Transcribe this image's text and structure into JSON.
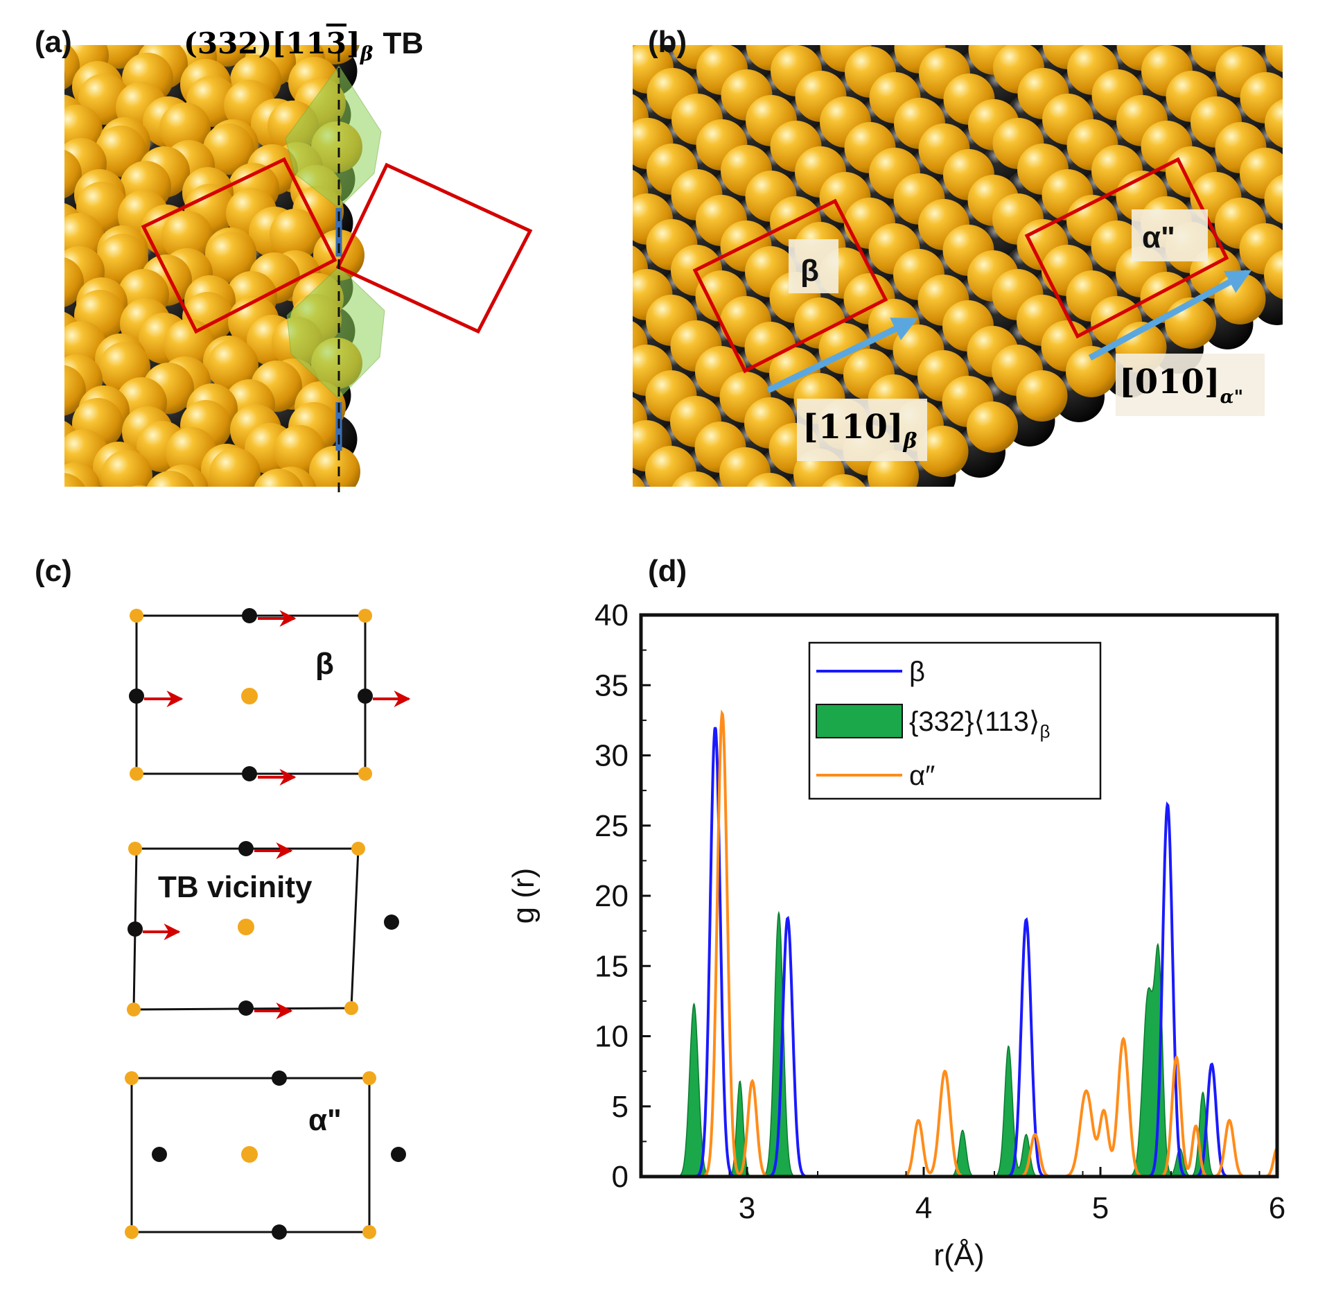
{
  "panels": {
    "a": {
      "label": "(a)",
      "title_prefix": "(332)[11",
      "title_bar3": "3",
      "title_close": "]",
      "title_sub": "β",
      "title_suffix": "TB"
    },
    "b": {
      "label": "(b)",
      "beta_label": "β",
      "alpha_label": "α\"",
      "dir_beta": "[110]",
      "dir_beta_sub": "β",
      "dir_alpha": "[010]",
      "dir_alpha_sub": "α\""
    },
    "c": {
      "label": "(c)",
      "cell_beta_label": "β",
      "cell_tb_label": "TB vicinity",
      "cell_alpha_label": "α\""
    },
    "d": {
      "label": "(d)"
    }
  },
  "colors": {
    "gold": "#e8a317",
    "black_atom": "#111111",
    "red": "#d40000",
    "blue_arrow": "#5aa7e0",
    "green_fill": "#1aa84a",
    "beta_line": "#1a1aff",
    "alpha_line": "#ff8c1a"
  },
  "chart_data": {
    "type": "line",
    "xlabel": "r(Å)",
    "ylabel": "g (r)",
    "xlim": [
      2.4,
      6.0
    ],
    "ylim": [
      0,
      40
    ],
    "xticks": [
      "3",
      "4",
      "5",
      "6"
    ],
    "xtick_values": [
      3,
      4,
      5,
      6
    ],
    "yticks": [
      "0",
      "5",
      "10",
      "15",
      "20",
      "25",
      "30",
      "35",
      "40"
    ],
    "ytick_values": [
      0,
      5,
      10,
      15,
      20,
      25,
      30,
      35,
      40
    ],
    "legend": {
      "position": "top-center",
      "entries": [
        {
          "name": "β",
          "style": "line"
        },
        {
          "name": "{332}⟨113⟩",
          "sub": "β",
          "style": "fill"
        },
        {
          "name": "α″",
          "style": "line"
        }
      ]
    },
    "series": [
      {
        "name": "β",
        "style": "line",
        "peaks": [
          [
            2.82,
            32.0,
            0.028
          ],
          [
            3.23,
            18.4,
            0.028
          ],
          [
            4.58,
            18.3,
            0.028
          ],
          [
            5.38,
            26.5,
            0.028
          ],
          [
            5.63,
            8.0,
            0.025
          ]
        ]
      },
      {
        "name": "{332}⟨113⟩β",
        "style": "fill",
        "peaks": [
          [
            2.7,
            12.3,
            0.025
          ],
          [
            2.96,
            6.8,
            0.018
          ],
          [
            3.18,
            18.8,
            0.025
          ],
          [
            4.22,
            3.3,
            0.02
          ],
          [
            4.48,
            9.3,
            0.022
          ],
          [
            4.58,
            3.0,
            0.02
          ],
          [
            5.27,
            13.0,
            0.03
          ],
          [
            5.33,
            14.5,
            0.022
          ],
          [
            5.45,
            2.0,
            0.02
          ],
          [
            5.58,
            6.0,
            0.02
          ]
        ]
      },
      {
        "name": "α″",
        "style": "line",
        "peaks": [
          [
            2.86,
            33.0,
            0.028
          ],
          [
            3.03,
            6.8,
            0.025
          ],
          [
            3.97,
            4.0,
            0.025
          ],
          [
            4.12,
            7.5,
            0.03
          ],
          [
            4.63,
            3.0,
            0.025
          ],
          [
            4.92,
            6.1,
            0.035
          ],
          [
            5.02,
            4.6,
            0.025
          ],
          [
            5.13,
            9.8,
            0.03
          ],
          [
            5.43,
            8.5,
            0.025
          ],
          [
            5.54,
            3.6,
            0.02
          ],
          [
            5.73,
            4.0,
            0.025
          ],
          [
            6.0,
            2.0,
            0.02
          ]
        ]
      }
    ]
  }
}
